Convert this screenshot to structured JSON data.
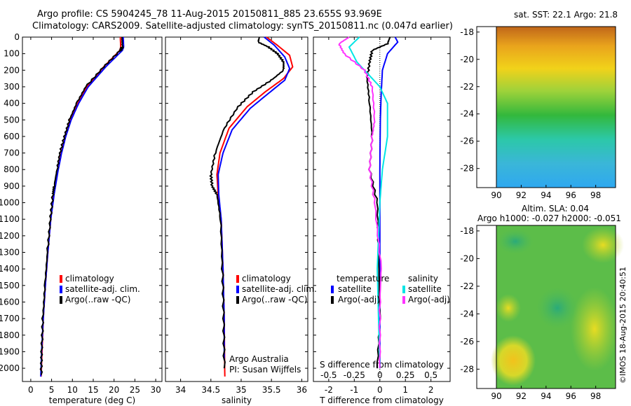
{
  "header": {
    "line1": "Argo profile: CS 5904245_78 11-Aug-2015 20150811_885 23.655S 93.969E",
    "line2": "Climatology: CARS2009. Satellite-adjusted climatology: synTS_20150811.nc (0.047d earlier)"
  },
  "depth_ticks": [
    0,
    100,
    200,
    300,
    400,
    500,
    600,
    700,
    800,
    900,
    1000,
    1100,
    1200,
    1300,
    1400,
    1500,
    1600,
    1700,
    1800,
    1900,
    2000
  ],
  "colors": {
    "climatology": "#ff0000",
    "satellite": "#0000ff",
    "argo": "#000000",
    "cyan": "#00e5e5",
    "magenta": "#ff33ff"
  },
  "chart_data": [
    {
      "type": "line",
      "xlabel": "temperature (deg C)",
      "xticks": [
        "0",
        "5",
        "10",
        "15",
        "20",
        "25",
        "30"
      ],
      "xlim": [
        -2,
        31.5
      ],
      "ylim": [
        0,
        2080
      ],
      "legend": [
        "climatology",
        "satellite-adj. clim.",
        "Argo(..raw -QC)"
      ],
      "series": [
        {
          "name": "climatology",
          "color": "#ff0000",
          "points": [
            [
              21.5,
              0
            ],
            [
              21.6,
              60
            ],
            [
              21.4,
              80
            ],
            [
              17.5,
              180
            ],
            [
              13.5,
              300
            ],
            [
              11.3,
              400
            ],
            [
              9.5,
              500
            ],
            [
              8.3,
              600
            ],
            [
              7.3,
              700
            ],
            [
              6.5,
              800
            ],
            [
              5.5,
              950
            ],
            [
              4.8,
              1100
            ],
            [
              4.1,
              1300
            ],
            [
              3.5,
              1500
            ],
            [
              3.0,
              1700
            ],
            [
              2.7,
              1900
            ],
            [
              2.5,
              2050
            ]
          ]
        },
        {
          "name": "satellite-adj. clim.",
          "color": "#0000ff",
          "points": [
            [
              22.2,
              0
            ],
            [
              22.3,
              60
            ],
            [
              22.0,
              80
            ],
            [
              18.0,
              180
            ],
            [
              13.8,
              300
            ],
            [
              11.5,
              400
            ],
            [
              9.7,
              500
            ],
            [
              8.4,
              600
            ],
            [
              7.4,
              700
            ],
            [
              6.6,
              800
            ],
            [
              5.6,
              950
            ],
            [
              4.8,
              1100
            ],
            [
              4.1,
              1300
            ],
            [
              3.5,
              1500
            ],
            [
              3.0,
              1700
            ],
            [
              2.6,
              1900
            ],
            [
              2.4,
              2050
            ]
          ]
        },
        {
          "name": "Argo(..raw -QC)",
          "color": "#000000",
          "points": [
            [
              21.9,
              0
            ],
            [
              22.0,
              60
            ],
            [
              21.5,
              80
            ],
            [
              17.5,
              180
            ],
            [
              13.2,
              300
            ],
            [
              11.0,
              400
            ],
            [
              9.3,
              500
            ],
            [
              8.1,
              600
            ],
            [
              7.0,
              700
            ],
            [
              6.3,
              800
            ],
            [
              5.6,
              900
            ],
            [
              5.3,
              950
            ],
            [
              4.7,
              1100
            ],
            [
              4.0,
              1300
            ],
            [
              3.4,
              1500
            ],
            [
              2.9,
              1700
            ],
            [
              2.6,
              1900
            ],
            [
              2.5,
              2040
            ]
          ]
        }
      ]
    },
    {
      "type": "line",
      "xlabel": "salinity",
      "xticks": [
        "34",
        "34.5",
        "35",
        "35.5",
        "36"
      ],
      "xlim": [
        33.75,
        36.1
      ],
      "ylim": [
        0,
        2080
      ],
      "legend": [
        "climatology",
        "satellite-adj. clim.",
        "Argo(..raw -QC)"
      ],
      "annotations": [
        "Argo Australia",
        "PI: Susan Wijffels"
      ],
      "series": [
        {
          "name": "climatology",
          "color": "#ff0000",
          "points": [
            [
              35.42,
              0
            ],
            [
              35.6,
              50
            ],
            [
              35.8,
              110
            ],
            [
              35.85,
              180
            ],
            [
              35.7,
              250
            ],
            [
              35.4,
              330
            ],
            [
              35.1,
              420
            ],
            [
              34.8,
              550
            ],
            [
              34.65,
              700
            ],
            [
              34.6,
              830
            ],
            [
              34.62,
              950
            ],
            [
              34.67,
              1100
            ],
            [
              34.7,
              1400
            ],
            [
              34.72,
              1700
            ],
            [
              34.73,
              2050
            ]
          ]
        },
        {
          "name": "satellite-adj. clim.",
          "color": "#0000ff",
          "points": [
            [
              35.38,
              0
            ],
            [
              35.55,
              50
            ],
            [
              35.72,
              120
            ],
            [
              35.8,
              190
            ],
            [
              35.72,
              260
            ],
            [
              35.45,
              340
            ],
            [
              35.15,
              430
            ],
            [
              34.85,
              560
            ],
            [
              34.7,
              700
            ],
            [
              34.62,
              830
            ],
            [
              34.63,
              950
            ],
            [
              34.67,
              1100
            ],
            [
              34.7,
              1400
            ],
            [
              34.72,
              1700
            ],
            [
              34.72,
              1950
            ]
          ]
        },
        {
          "name": "Argo(..raw -QC)",
          "color": "#000000",
          "points": [
            [
              35.3,
              0
            ],
            [
              35.28,
              30
            ],
            [
              35.45,
              60
            ],
            [
              35.6,
              100
            ],
            [
              35.7,
              150
            ],
            [
              35.7,
              200
            ],
            [
              35.5,
              260
            ],
            [
              35.2,
              330
            ],
            [
              34.95,
              420
            ],
            [
              34.72,
              550
            ],
            [
              34.57,
              700
            ],
            [
              34.5,
              830
            ],
            [
              34.52,
              900
            ],
            [
              34.6,
              950
            ],
            [
              34.66,
              1100
            ],
            [
              34.69,
              1400
            ],
            [
              34.71,
              1700
            ],
            [
              34.72,
              2000
            ]
          ]
        }
      ]
    },
    {
      "type": "line",
      "xlabel": "T difference from climatology",
      "xticks": [
        "-2",
        "-1",
        "0",
        "1",
        "2"
      ],
      "xlim": [
        -2.6,
        2.75
      ],
      "ylim": [
        0,
        2080
      ],
      "top_axis_label": "S difference from climatology",
      "top_ticks": [
        "-0.5",
        "-0.25",
        "0",
        "0.25",
        "0.5"
      ],
      "legend_groups": {
        "temperature": [
          "satellite",
          "Argo(-adj)"
        ],
        "salinity": [
          "satellite",
          "Argo(-adj)"
        ]
      },
      "series": [
        {
          "name": "temperature satellite",
          "color": "#0000ff",
          "points": [
            [
              0.6,
              0
            ],
            [
              0.7,
              30
            ],
            [
              0.3,
              100
            ],
            [
              0.1,
              200
            ],
            [
              0.05,
              350
            ],
            [
              0.02,
              500
            ],
            [
              0.0,
              800
            ],
            [
              0.0,
              2000
            ]
          ]
        },
        {
          "name": "temperature Argo(-adj)",
          "color": "#000000",
          "points": [
            [
              0.4,
              0
            ],
            [
              0.3,
              40
            ],
            [
              -0.3,
              80
            ],
            [
              -0.4,
              150
            ],
            [
              -0.5,
              250
            ],
            [
              -0.4,
              400
            ],
            [
              -0.3,
              600
            ],
            [
              -0.4,
              800
            ],
            [
              -0.1,
              1000
            ],
            [
              -0.05,
              1300
            ],
            [
              0.0,
              1700
            ],
            [
              -0.1,
              2000
            ]
          ]
        },
        {
          "name": "salinity satellite",
          "color": "#00e5e5",
          "points": [
            [
              -0.8,
              0
            ],
            [
              -1.2,
              60
            ],
            [
              -0.9,
              150
            ],
            [
              0.0,
              300
            ],
            [
              0.3,
              400
            ],
            [
              0.3,
              600
            ],
            [
              0.1,
              800
            ],
            [
              0.0,
              1000
            ],
            [
              -0.1,
              1400
            ],
            [
              0.0,
              2000
            ]
          ]
        },
        {
          "name": "salinity Argo(-adj)",
          "color": "#ff33ff",
          "points": [
            [
              -1.2,
              0
            ],
            [
              -1.6,
              40
            ],
            [
              -1.4,
              100
            ],
            [
              -0.6,
              200
            ],
            [
              -0.3,
              300
            ],
            [
              -0.2,
              500
            ],
            [
              -0.3,
              600
            ],
            [
              -0.4,
              800
            ],
            [
              -0.2,
              1000
            ],
            [
              0.05,
              1400
            ],
            [
              0.0,
              1600
            ],
            [
              0.0,
              2000
            ]
          ]
        }
      ]
    },
    {
      "type": "heatmap",
      "title": "sat. SST: 22.1  Argo: 21.8",
      "xticks": [
        "90",
        "92",
        "94",
        "96",
        "98"
      ],
      "yticks": [
        "-18",
        "-20",
        "-22",
        "-24",
        "-26",
        "-28"
      ]
    },
    {
      "type": "heatmap",
      "title": "Altim. SLA: 0.04",
      "subtitle": "Argo h1000: -0.027  h2000: -0.051",
      "xticks": [
        "90",
        "92",
        "94",
        "96",
        "98"
      ],
      "yticks": [
        "-18",
        "-20",
        "-22",
        "-24",
        "-26",
        "-28"
      ]
    }
  ],
  "footer": {
    "credit": "©IMOS 18-Aug-2015 20:40:51"
  }
}
